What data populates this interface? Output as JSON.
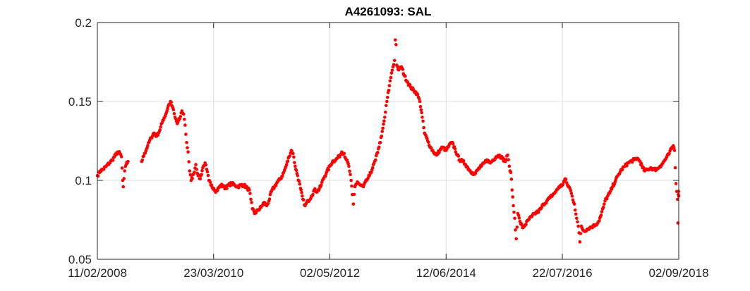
{
  "chart_data": {
    "type": "scatter",
    "title": "A4261093: SAL",
    "xlabel": "",
    "ylabel": "",
    "x_axis_type": "date",
    "xlim": [
      "2008-02-11",
      "2018-09-02"
    ],
    "ylim": [
      0.05,
      0.2
    ],
    "x_ticks": [
      "2008-02-11",
      "2010-03-23",
      "2012-05-02",
      "2014-06-12",
      "2016-07-22",
      "2018-09-02"
    ],
    "x_tick_labels": [
      "11/02/2008",
      "23/03/2010",
      "02/05/2012",
      "12/06/2014",
      "22/07/2016",
      "02/09/2018"
    ],
    "y_ticks": [
      0.05,
      0.1,
      0.15,
      0.2
    ],
    "y_tick_labels": [
      "0.05",
      "0.1",
      "0.15",
      "0.2"
    ],
    "grid": true,
    "marker": "dot",
    "series": [
      {
        "color": "#ff0000",
        "points": [
          [
            "2008-02-11",
            0.103
          ],
          [
            "2008-03-01",
            0.106
          ],
          [
            "2008-03-20",
            0.107
          ],
          [
            "2008-04-10",
            0.109
          ],
          [
            "2008-05-01",
            0.111
          ],
          [
            "2008-05-20",
            0.113
          ],
          [
            "2008-06-10",
            0.116
          ],
          [
            "2008-06-25",
            0.118
          ],
          [
            "2008-07-10",
            0.117
          ],
          [
            "2008-07-20",
            0.115
          ],
          [
            "2008-07-28",
            0.1
          ],
          [
            "2008-08-01",
            0.096
          ],
          [
            "2008-08-10",
            0.106
          ],
          [
            "2008-08-20",
            0.11
          ],
          [
            "2008-09-01",
            0.112
          ],
          [
            "2008-12-01",
            0.112
          ],
          [
            "2008-12-20",
            0.117
          ],
          [
            "2009-01-10",
            0.122
          ],
          [
            "2009-02-01",
            0.127
          ],
          [
            "2009-02-20",
            0.13
          ],
          [
            "2009-03-10",
            0.128
          ],
          [
            "2009-04-01",
            0.132
          ],
          [
            "2009-04-20",
            0.138
          ],
          [
            "2009-05-10",
            0.142
          ],
          [
            "2009-05-30",
            0.148
          ],
          [
            "2009-06-10",
            0.15
          ],
          [
            "2009-06-25",
            0.146
          ],
          [
            "2009-07-10",
            0.14
          ],
          [
            "2009-07-25",
            0.136
          ],
          [
            "2009-08-10",
            0.139
          ],
          [
            "2009-08-25",
            0.144
          ],
          [
            "2009-09-05",
            0.142
          ],
          [
            "2009-09-15",
            0.135
          ],
          [
            "2009-09-25",
            0.124
          ],
          [
            "2009-10-05",
            0.118
          ],
          [
            "2009-10-15",
            0.106
          ],
          [
            "2009-10-25",
            0.1
          ],
          [
            "2009-11-10",
            0.104
          ],
          [
            "2009-11-25",
            0.11
          ],
          [
            "2009-12-10",
            0.103
          ],
          [
            "2009-12-25",
            0.101
          ],
          [
            "2010-01-10",
            0.108
          ],
          [
            "2010-01-25",
            0.111
          ],
          [
            "2010-02-05",
            0.107
          ],
          [
            "2010-02-20",
            0.1
          ],
          [
            "2010-03-05",
            0.097
          ],
          [
            "2010-03-23",
            0.095
          ],
          [
            "2010-04-10",
            0.093
          ],
          [
            "2010-05-01",
            0.096
          ],
          [
            "2010-05-20",
            0.097
          ],
          [
            "2010-06-10",
            0.095
          ],
          [
            "2010-07-01",
            0.097
          ],
          [
            "2010-07-20",
            0.098
          ],
          [
            "2010-08-10",
            0.097
          ],
          [
            "2010-09-01",
            0.096
          ],
          [
            "2010-09-20",
            0.097
          ],
          [
            "2010-10-10",
            0.097
          ],
          [
            "2010-11-01",
            0.095
          ],
          [
            "2010-11-15",
            0.094
          ],
          [
            "2010-11-25",
            0.088
          ],
          [
            "2010-12-05",
            0.082
          ],
          [
            "2010-12-20",
            0.079
          ],
          [
            "2011-01-10",
            0.081
          ],
          [
            "2011-02-01",
            0.083
          ],
          [
            "2011-02-20",
            0.086
          ],
          [
            "2011-03-10",
            0.084
          ],
          [
            "2011-03-25",
            0.087
          ],
          [
            "2011-04-10",
            0.093
          ],
          [
            "2011-05-01",
            0.096
          ],
          [
            "2011-05-20",
            0.099
          ],
          [
            "2011-06-10",
            0.101
          ],
          [
            "2011-07-01",
            0.105
          ],
          [
            "2011-07-20",
            0.11
          ],
          [
            "2011-08-05",
            0.115
          ],
          [
            "2011-08-20",
            0.119
          ],
          [
            "2011-09-01",
            0.117
          ],
          [
            "2011-09-15",
            0.109
          ],
          [
            "2011-10-01",
            0.103
          ],
          [
            "2011-10-20",
            0.095
          ],
          [
            "2011-11-05",
            0.088
          ],
          [
            "2011-11-20",
            0.084
          ],
          [
            "2011-12-10",
            0.087
          ],
          [
            "2012-01-01",
            0.09
          ],
          [
            "2012-01-20",
            0.094
          ],
          [
            "2012-02-10",
            0.093
          ],
          [
            "2012-03-01",
            0.096
          ],
          [
            "2012-03-20",
            0.101
          ],
          [
            "2012-04-10",
            0.105
          ],
          [
            "2012-05-02",
            0.109
          ],
          [
            "2012-05-20",
            0.112
          ],
          [
            "2012-06-10",
            0.113
          ],
          [
            "2012-07-01",
            0.115
          ],
          [
            "2012-07-20",
            0.118
          ],
          [
            "2012-08-05",
            0.117
          ],
          [
            "2012-08-20",
            0.113
          ],
          [
            "2012-09-05",
            0.109
          ],
          [
            "2012-09-20",
            0.1
          ],
          [
            "2012-09-28",
            0.091
          ],
          [
            "2012-10-05",
            0.085
          ],
          [
            "2012-10-15",
            0.096
          ],
          [
            "2012-11-01",
            0.099
          ],
          [
            "2012-11-20",
            0.097
          ],
          [
            "2012-12-10",
            0.096
          ],
          [
            "2013-01-01",
            0.1
          ],
          [
            "2013-01-20",
            0.103
          ],
          [
            "2013-02-10",
            0.108
          ],
          [
            "2013-03-01",
            0.113
          ],
          [
            "2013-03-20",
            0.12
          ],
          [
            "2013-04-10",
            0.128
          ],
          [
            "2013-05-01",
            0.14
          ],
          [
            "2013-05-15",
            0.15
          ],
          [
            "2013-06-01",
            0.16
          ],
          [
            "2013-06-15",
            0.168
          ],
          [
            "2013-06-25",
            0.172
          ],
          [
            "2013-07-05",
            0.176
          ],
          [
            "2013-07-10",
            0.189
          ],
          [
            "2013-07-15",
            0.186
          ],
          [
            "2013-07-20",
            0.173
          ],
          [
            "2013-08-01",
            0.17
          ],
          [
            "2013-08-20",
            0.172
          ],
          [
            "2013-09-10",
            0.166
          ],
          [
            "2013-10-01",
            0.162
          ],
          [
            "2013-10-20",
            0.159
          ],
          [
            "2013-11-10",
            0.157
          ],
          [
            "2013-12-01",
            0.155
          ],
          [
            "2013-12-20",
            0.15
          ],
          [
            "2014-01-05",
            0.14
          ],
          [
            "2014-01-20",
            0.13
          ],
          [
            "2014-02-10",
            0.125
          ],
          [
            "2014-03-01",
            0.121
          ],
          [
            "2014-03-20",
            0.118
          ],
          [
            "2014-04-10",
            0.116
          ],
          [
            "2014-05-01",
            0.119
          ],
          [
            "2014-05-20",
            0.121
          ],
          [
            "2014-06-12",
            0.119
          ],
          [
            "2014-07-01",
            0.122
          ],
          [
            "2014-07-20",
            0.124
          ],
          [
            "2014-08-10",
            0.12
          ],
          [
            "2014-08-25",
            0.116
          ],
          [
            "2014-09-10",
            0.113
          ],
          [
            "2014-10-01",
            0.112
          ],
          [
            "2014-10-20",
            0.11
          ],
          [
            "2014-11-10",
            0.107
          ],
          [
            "2014-12-01",
            0.105
          ],
          [
            "2014-12-20",
            0.104
          ],
          [
            "2015-01-10",
            0.107
          ],
          [
            "2015-02-01",
            0.109
          ],
          [
            "2015-02-20",
            0.111
          ],
          [
            "2015-03-10",
            0.113
          ],
          [
            "2015-04-01",
            0.111
          ],
          [
            "2015-04-20",
            0.113
          ],
          [
            "2015-05-10",
            0.115
          ],
          [
            "2015-06-01",
            0.116
          ],
          [
            "2015-06-20",
            0.114
          ],
          [
            "2015-07-10",
            0.112
          ],
          [
            "2015-07-25",
            0.116
          ],
          [
            "2015-08-05",
            0.109
          ],
          [
            "2015-08-15",
            0.105
          ],
          [
            "2015-09-01",
            0.084
          ],
          [
            "2015-09-10",
            0.076
          ],
          [
            "2015-09-20",
            0.063
          ],
          [
            "2015-10-01",
            0.079
          ],
          [
            "2015-10-15",
            0.074
          ],
          [
            "2015-11-01",
            0.07
          ],
          [
            "2015-11-20",
            0.072
          ],
          [
            "2015-12-10",
            0.075
          ],
          [
            "2016-01-01",
            0.077
          ],
          [
            "2016-01-20",
            0.079
          ],
          [
            "2016-02-10",
            0.08
          ],
          [
            "2016-03-01",
            0.082
          ],
          [
            "2016-03-20",
            0.085
          ],
          [
            "2016-04-10",
            0.087
          ],
          [
            "2016-05-01",
            0.089
          ],
          [
            "2016-05-20",
            0.091
          ],
          [
            "2016-06-10",
            0.093
          ],
          [
            "2016-07-01",
            0.096
          ],
          [
            "2016-07-22",
            0.097
          ],
          [
            "2016-08-10",
            0.101
          ],
          [
            "2016-08-25",
            0.097
          ],
          [
            "2016-09-10",
            0.095
          ],
          [
            "2016-09-25",
            0.09
          ],
          [
            "2016-10-10",
            0.085
          ],
          [
            "2016-10-25",
            0.076
          ],
          [
            "2016-11-05",
            0.071
          ],
          [
            "2016-11-15",
            0.061
          ],
          [
            "2016-11-25",
            0.071
          ],
          [
            "2016-12-10",
            0.068
          ],
          [
            "2017-01-01",
            0.069
          ],
          [
            "2017-01-20",
            0.07
          ],
          [
            "2017-02-10",
            0.071
          ],
          [
            "2017-03-01",
            0.072
          ],
          [
            "2017-03-20",
            0.074
          ],
          [
            "2017-04-05",
            0.078
          ],
          [
            "2017-04-20",
            0.083
          ],
          [
            "2017-05-01",
            0.087
          ],
          [
            "2017-06-01",
            0.092
          ],
          [
            "2017-06-20",
            0.096
          ],
          [
            "2017-07-10",
            0.1
          ],
          [
            "2017-08-01",
            0.104
          ],
          [
            "2017-08-20",
            0.107
          ],
          [
            "2017-09-10",
            0.109
          ],
          [
            "2017-10-01",
            0.111
          ],
          [
            "2017-10-20",
            0.112
          ],
          [
            "2017-11-10",
            0.113
          ],
          [
            "2017-12-01",
            0.114
          ],
          [
            "2017-12-20",
            0.112
          ],
          [
            "2018-01-05",
            0.108
          ],
          [
            "2018-01-20",
            0.106
          ],
          [
            "2018-02-10",
            0.107
          ],
          [
            "2018-03-01",
            0.108
          ],
          [
            "2018-03-20",
            0.107
          ],
          [
            "2018-04-10",
            0.107
          ],
          [
            "2018-05-01",
            0.109
          ],
          [
            "2018-05-20",
            0.111
          ],
          [
            "2018-06-10",
            0.114
          ],
          [
            "2018-07-01",
            0.117
          ],
          [
            "2018-07-15",
            0.12
          ],
          [
            "2018-07-28",
            0.122
          ],
          [
            "2018-08-05",
            0.119
          ],
          [
            "2018-08-10",
            0.108
          ],
          [
            "2018-08-15",
            0.098
          ],
          [
            "2018-08-20",
            0.093
          ],
          [
            "2018-08-25",
            0.088
          ],
          [
            "2018-08-28",
            0.073
          ],
          [
            "2018-08-30",
            0.091
          ],
          [
            "2018-09-01",
            0.093
          ],
          [
            "2018-09-02",
            0.09
          ]
        ]
      }
    ]
  }
}
